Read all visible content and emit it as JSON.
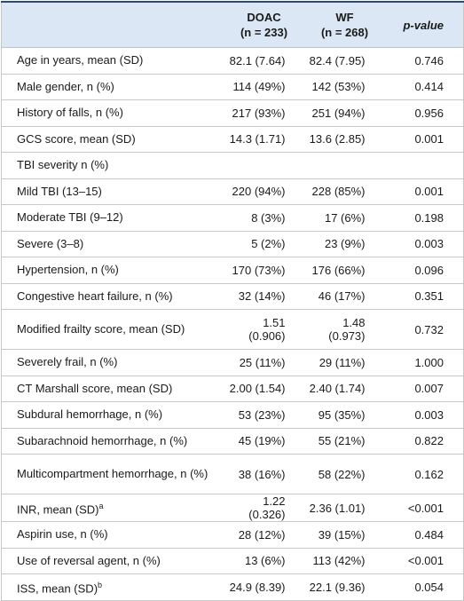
{
  "table": {
    "header": [
      {
        "lines": [
          "DOAC",
          "(n = 233)"
        ]
      },
      {
        "lines": [
          "WF",
          "(n = 268)"
        ]
      },
      {
        "lines": [
          "p-value"
        ]
      }
    ],
    "rows": [
      {
        "label": "Age in years, mean (SD)",
        "cells": [
          "82.1 (7.64)",
          "82.4 (7.95)",
          "0.746"
        ]
      },
      {
        "label": "Male gender, n (%)",
        "cells": [
          "114 (49%)",
          "142 (53%)",
          "0.414"
        ]
      },
      {
        "label": "History of falls, n (%)",
        "cells": [
          "217 (93%)",
          "251 (94%)",
          "0.956"
        ]
      },
      {
        "label": "GCS score, mean (SD)",
        "cells": [
          "14.3 (1.71)",
          "13.6 (2.85)",
          "0.001"
        ]
      },
      {
        "label": "TBI severity n (%)"
      },
      {
        "label": "Mild TBI (13–15)",
        "cells": [
          "220 (94%)",
          "228 (85%)",
          "0.001"
        ]
      },
      {
        "label": "Moderate TBI (9–12)",
        "cells": [
          "8 (3%)",
          "17 (6%)",
          "0.198"
        ]
      },
      {
        "label": "Severe (3–8)",
        "cells": [
          "5 (2%)",
          "23 (9%)",
          "0.003"
        ]
      },
      {
        "label": "Hypertension, n (%)",
        "cells": [
          "170 (73%)",
          "176 (66%)",
          "0.096"
        ]
      },
      {
        "label": "Congestive heart failure, n (%)",
        "cells": [
          "32 (14%)",
          "46 (17%)",
          "0.351"
        ]
      },
      {
        "label": "Modified frailty score, mean (SD)",
        "cells": [
          "1.51 (0.906)",
          "1.48 (0.973)",
          "0.732"
        ]
      },
      {
        "label": "Severely frail, n (%)",
        "cells": [
          "25 (11%)",
          "29 (11%)",
          "1.000"
        ]
      },
      {
        "label": "CT Marshall score, mean (SD)",
        "cells": [
          "2.00 (1.54)",
          "2.40 (1.74)",
          "0.007"
        ]
      },
      {
        "label": "Subdural hemorrhage, n (%)",
        "cells": [
          "53 (23%)",
          "95 (35%)",
          "0.003"
        ]
      },
      {
        "label": "Subarachnoid hemorrhage, n (%)",
        "cells": [
          "45 (19%)",
          "55 (21%)",
          "0.822"
        ]
      },
      {
        "label": "Multicompartment hemorrhage, n (%)",
        "cells": [
          "38 (16%)",
          "58 (22%)",
          "0.162"
        ]
      },
      {
        "label": "INR, mean (SD)",
        "note": "a",
        "cells": [
          "1.22 (0.326)",
          "2.36 (1.01)",
          "<0.001"
        ]
      },
      {
        "label": "Aspirin use, n (%)",
        "cells": [
          "28 (12%)",
          "39 (15%)",
          "0.484"
        ]
      },
      {
        "label": "Use of reversal agent, n (%)",
        "cells": [
          "13 (6%)",
          "113 (42%)",
          "<0.001"
        ]
      },
      {
        "label": "ISS, mean (SD)",
        "note": "b",
        "cells": [
          "24.9 (8.39)",
          "22.1 (9.36)",
          "0.054"
        ]
      }
    ]
  }
}
